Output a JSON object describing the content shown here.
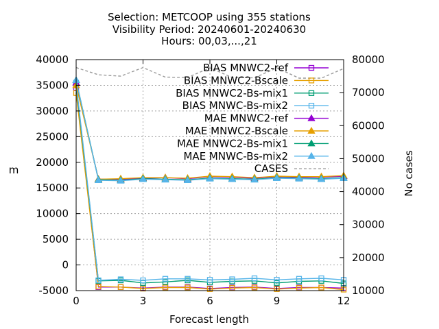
{
  "chart_data": {
    "type": "line",
    "title_lines": [
      "Selection: METCOOP using   355 stations",
      "Visibility   Period: 20240601-20240630",
      "Hours: 00,03,...,21"
    ],
    "xlabel": "Forecast length",
    "ylabel": "m",
    "y2label": "No cases",
    "xlim": [
      0,
      12
    ],
    "ylim": [
      -5000,
      40000
    ],
    "y2lim": [
      10000,
      80000
    ],
    "xticks": [
      "0",
      "3",
      "6",
      "9",
      "12"
    ],
    "yticks": [
      "-5000",
      "0",
      "5000",
      "10000",
      "15000",
      "20000",
      "25000",
      "30000",
      "35000",
      "40000"
    ],
    "y2ticks": [
      "10000",
      "20000",
      "30000",
      "40000",
      "50000",
      "60000",
      "70000",
      "80000"
    ],
    "grid": true,
    "legend_position": "top-right",
    "x": [
      0,
      1,
      2,
      3,
      4,
      5,
      6,
      7,
      8,
      9,
      10,
      11,
      12
    ],
    "series": [
      {
        "name": "BIAS MNWC2-ref",
        "color": "#9400d3",
        "marker": "square",
        "dash": "solid",
        "axis": "y1",
        "values": [
          34500,
          -4300,
          -4300,
          -4500,
          -4300,
          -4300,
          -4600,
          -4400,
          -4300,
          -4600,
          -4400,
          -4400,
          -4500
        ]
      },
      {
        "name": "BIAS MNWC2-Bscale",
        "color": "#e69f00",
        "marker": "square",
        "dash": "solid",
        "axis": "y1",
        "values": [
          33500,
          -4200,
          -4300,
          -4600,
          -4400,
          -4400,
          -4700,
          -4500,
          -4400,
          -4700,
          -4500,
          -4400,
          -4800
        ]
      },
      {
        "name": "BIAS MNWC2-Bs-mix1",
        "color": "#009e73",
        "marker": "square",
        "dash": "solid",
        "axis": "y1",
        "values": [
          35000,
          -3100,
          -3000,
          -3500,
          -3300,
          -3000,
          -3400,
          -3200,
          -3100,
          -3500,
          -3200,
          -3100,
          -3600
        ]
      },
      {
        "name": "BIAS MNWC-Bs-mix2",
        "color": "#56b4e9",
        "marker": "square",
        "dash": "solid",
        "axis": "y1",
        "values": [
          35500,
          -3000,
          -2800,
          -3000,
          -2700,
          -2700,
          -2900,
          -2800,
          -2600,
          -2900,
          -2700,
          -2600,
          -2900
        ]
      },
      {
        "name": "MAE MNWC2-ref",
        "color": "#9400d3",
        "marker": "triangle",
        "dash": "solid",
        "axis": "y1",
        "values": [
          35500,
          16700,
          16700,
          16900,
          17000,
          16800,
          17200,
          17100,
          16900,
          17200,
          17100,
          17100,
          17300
        ]
      },
      {
        "name": "MAE MNWC2-Bscale",
        "color": "#e69f00",
        "marker": "triangle",
        "dash": "solid",
        "axis": "y1",
        "values": [
          35000,
          16700,
          16800,
          17000,
          17000,
          16900,
          17300,
          17200,
          17000,
          17300,
          17200,
          17200,
          17400
        ]
      },
      {
        "name": "MAE MNWC2-Bs-mix1",
        "color": "#009e73",
        "marker": "triangle",
        "dash": "solid",
        "axis": "y1",
        "values": [
          36000,
          16600,
          16500,
          16800,
          16700,
          16600,
          16900,
          16800,
          16700,
          17000,
          16900,
          16800,
          17000
        ]
      },
      {
        "name": "MAE MNWC-Bs-mix2",
        "color": "#56b4e9",
        "marker": "triangle",
        "dash": "solid",
        "axis": "y1",
        "values": [
          36000,
          16500,
          16400,
          16700,
          16600,
          16500,
          16800,
          16700,
          16600,
          16900,
          16800,
          16700,
          16900
        ]
      },
      {
        "name": "CASES",
        "color": "#999999",
        "marker": "none",
        "dash": "dashed",
        "axis": "y2",
        "values": [
          77600,
          75400,
          75000,
          77600,
          74700,
          74600,
          77500,
          74600,
          74500,
          77500,
          74400,
          74400,
          77300
        ]
      }
    ]
  }
}
